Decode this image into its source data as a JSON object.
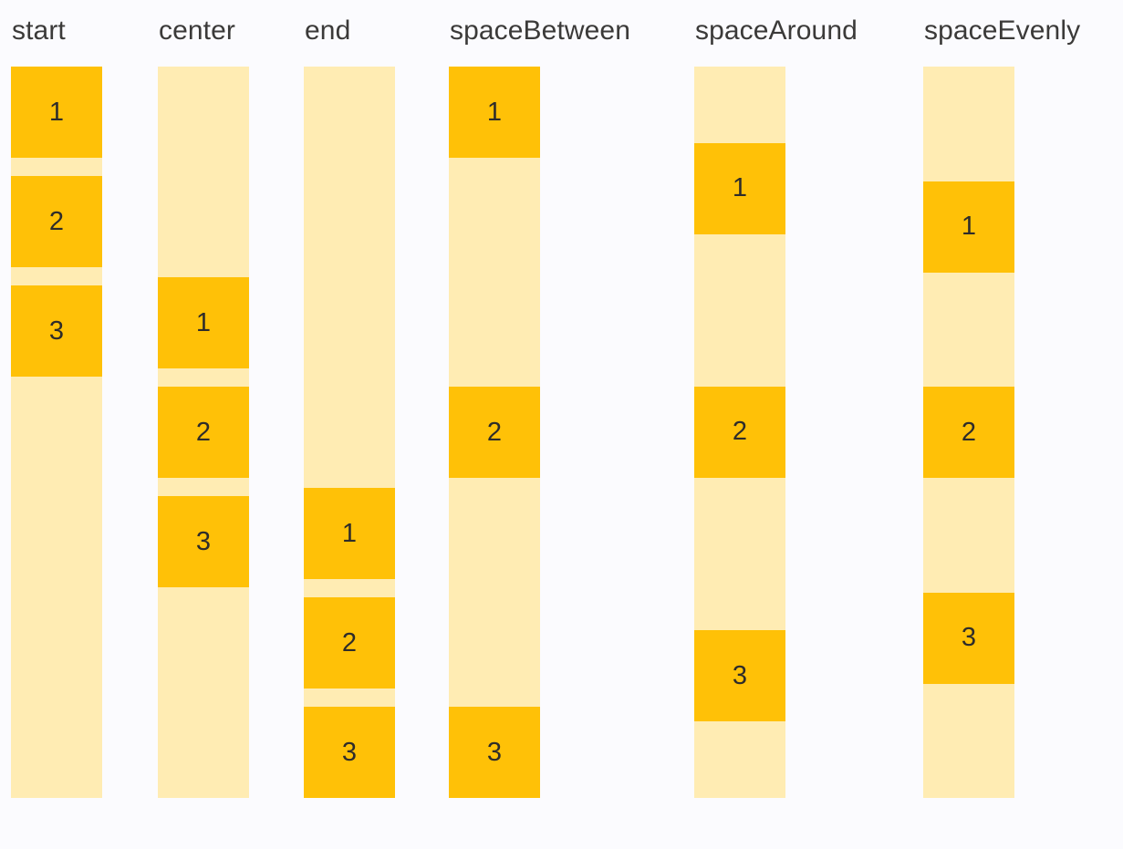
{
  "colors": {
    "background": "#FBFBFE",
    "box": "#FFC107",
    "track": "#FFECB3",
    "label_text": "#3B3A39",
    "number_text": "#2E2C2A"
  },
  "columns": [
    {
      "label": "start",
      "alignment": "start",
      "items": [
        "1",
        "2",
        "3"
      ]
    },
    {
      "label": "center",
      "alignment": "center",
      "items": [
        "1",
        "2",
        "3"
      ]
    },
    {
      "label": "end",
      "alignment": "end",
      "items": [
        "1",
        "2",
        "3"
      ]
    },
    {
      "label": "spaceBetween",
      "alignment": "spaceBetween",
      "items": [
        "1",
        "2",
        "3"
      ]
    },
    {
      "label": "spaceAround",
      "alignment": "spaceAround",
      "items": [
        "1",
        "2",
        "3"
      ]
    },
    {
      "label": "spaceEvenly",
      "alignment": "spaceEvenly",
      "items": [
        "1",
        "2",
        "3"
      ]
    }
  ]
}
